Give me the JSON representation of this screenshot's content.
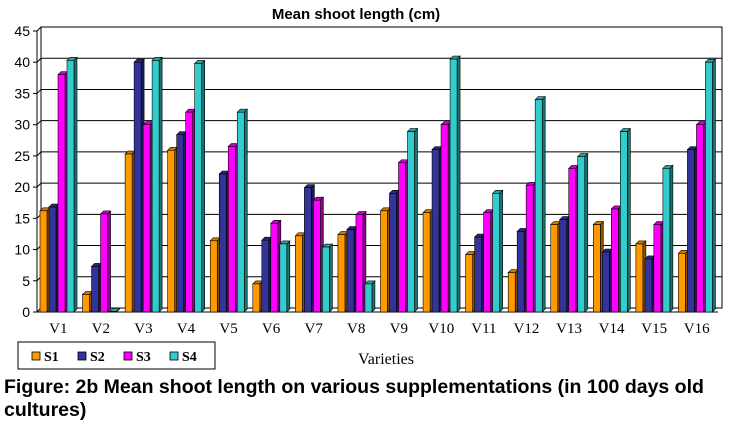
{
  "chart_data": {
    "type": "bar",
    "title": "Mean shoot length (cm)",
    "xlabel": "Varieties",
    "ylabel": "",
    "ylim": [
      0,
      45
    ],
    "yticks": [
      0,
      5,
      10,
      15,
      20,
      25,
      30,
      35,
      40,
      45
    ],
    "grid": true,
    "legend_position": "bottom-left",
    "categories": [
      "V1",
      "V2",
      "V3",
      "V4",
      "V5",
      "V6",
      "V7",
      "V8",
      "V9",
      "V10",
      "V11",
      "V12",
      "V13",
      "V14",
      "V15",
      "V16"
    ],
    "series": [
      {
        "name": "S1",
        "color": "#ff9900",
        "values": [
          16.2,
          2.8,
          25.3,
          25.9,
          11.4,
          4.5,
          12.2,
          12.4,
          16.2,
          15.9,
          9.2,
          6.3,
          14.0,
          14.0,
          10.9,
          9.4
        ]
      },
      {
        "name": "S2",
        "color": "#333399",
        "values": [
          16.8,
          7.3,
          40.0,
          28.4,
          22.1,
          11.5,
          19.9,
          13.2,
          19.0,
          26.0,
          12.0,
          12.9,
          14.8,
          9.6,
          8.5,
          26.0
        ]
      },
      {
        "name": "S3",
        "color": "#ff00ff",
        "values": [
          38.0,
          15.7,
          30.0,
          32.0,
          26.5,
          14.2,
          17.9,
          15.6,
          23.9,
          30.0,
          15.9,
          20.3,
          23.0,
          16.5,
          14.0,
          30.0
        ]
      },
      {
        "name": "S4",
        "color": "#33cccc",
        "values": [
          40.3,
          0.1,
          40.3,
          39.8,
          32.0,
          10.9,
          10.4,
          4.5,
          28.9,
          40.5,
          19.0,
          34.0,
          24.9,
          28.9,
          23.0,
          40.0
        ]
      }
    ]
  },
  "caption": "Figure: 2b Mean shoot length on various supplementations (in 100 days old cultures)"
}
